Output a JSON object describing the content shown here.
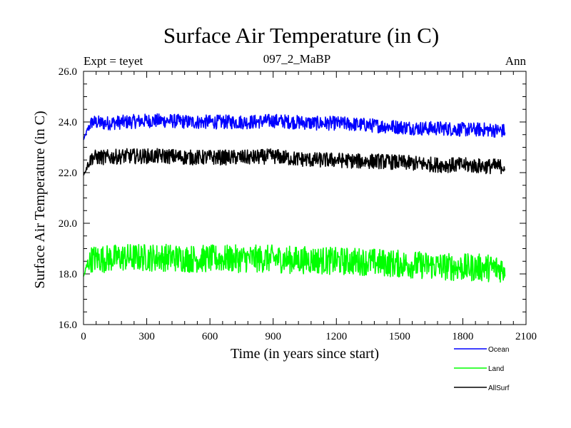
{
  "chart_data": {
    "type": "line",
    "title": "Surface Air Temperature (in C)",
    "subtitle": "097_2_MaBP",
    "left_label": "Expt = teyet",
    "right_label": "Ann",
    "xlabel": "Time (in years since start)",
    "ylabel": "Surface Air Temperature (in C)",
    "xlim": [
      0,
      2100
    ],
    "ylim": [
      16,
      26
    ],
    "xticks": [
      0,
      300,
      600,
      900,
      1200,
      1500,
      1800,
      2100
    ],
    "xtick_labels": [
      "0",
      "300",
      "600",
      "900",
      "1200",
      "1500",
      "1800",
      "2100"
    ],
    "yticks": [
      16,
      18,
      20,
      22,
      24,
      26
    ],
    "ytick_labels": [
      "16.0",
      "18.0",
      "20.0",
      "22.0",
      "24.0",
      "26.0"
    ],
    "series": [
      {
        "name": "Ocean",
        "color": "#0000ff",
        "x": [
          0,
          20,
          40,
          100,
          200,
          300,
          400,
          500,
          600,
          700,
          800,
          900,
          1000,
          1100,
          1200,
          1300,
          1400,
          1500,
          1600,
          1700,
          1800,
          1900,
          2000
        ],
        "values": [
          23.3,
          23.7,
          24.0,
          23.95,
          24.0,
          24.05,
          24.05,
          24.0,
          24.0,
          24.0,
          24.0,
          24.05,
          24.0,
          23.95,
          23.95,
          23.9,
          23.85,
          23.8,
          23.75,
          23.75,
          23.7,
          23.7,
          23.65
        ]
      },
      {
        "name": "Land",
        "color": "#00ff00",
        "x": [
          0,
          20,
          40,
          100,
          200,
          300,
          400,
          500,
          600,
          700,
          800,
          900,
          1000,
          1100,
          1200,
          1300,
          1400,
          1500,
          1600,
          1700,
          1800,
          1900,
          2000
        ],
        "values": [
          17.9,
          18.4,
          18.6,
          18.6,
          18.65,
          18.65,
          18.65,
          18.6,
          18.6,
          18.6,
          18.6,
          18.6,
          18.55,
          18.55,
          18.5,
          18.5,
          18.45,
          18.4,
          18.35,
          18.3,
          18.25,
          18.25,
          18.2
        ]
      },
      {
        "name": "AllSurf",
        "color": "#000000",
        "x": [
          0,
          20,
          40,
          100,
          200,
          300,
          400,
          500,
          600,
          700,
          800,
          900,
          1000,
          1100,
          1200,
          1300,
          1400,
          1500,
          1600,
          1700,
          1800,
          1900,
          2000
        ],
        "values": [
          21.9,
          22.3,
          22.6,
          22.6,
          22.65,
          22.65,
          22.65,
          22.6,
          22.6,
          22.6,
          22.6,
          22.65,
          22.55,
          22.5,
          22.5,
          22.45,
          22.45,
          22.4,
          22.35,
          22.3,
          22.3,
          22.25,
          22.25
        ]
      }
    ],
    "legend": {
      "position": "bottom-right",
      "entries": [
        "Ocean",
        "Land",
        "AllSurf"
      ]
    }
  }
}
